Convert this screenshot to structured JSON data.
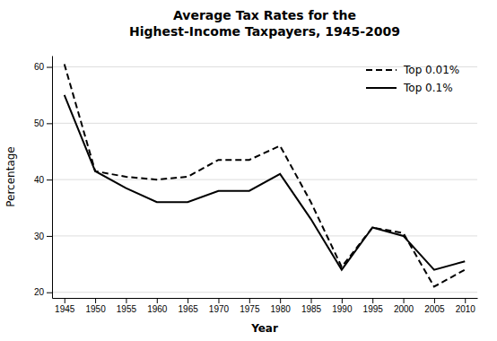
{
  "chart_data": {
    "type": "line",
    "title": "Average Tax Rates for the\nHighest-Income Taxpayers, 1945-2009",
    "xlabel": "Year",
    "ylabel": "Percentage",
    "x": [
      1945,
      1950,
      1955,
      1960,
      1965,
      1970,
      1975,
      1980,
      1985,
      1990,
      1995,
      2000,
      2005,
      2010
    ],
    "series": [
      {
        "name": "Top 0.01%",
        "color": "#000000",
        "line_style": "dashed",
        "values": [
          60.5,
          41.5,
          40.5,
          40.0,
          40.5,
          43.5,
          43.5,
          46.0,
          36.0,
          24.5,
          31.5,
          30.5,
          21.0,
          24.0
        ]
      },
      {
        "name": "Top 0.1%",
        "color": "#000000",
        "line_style": "solid",
        "values": [
          55.0,
          41.5,
          38.5,
          36.0,
          36.0,
          38.0,
          38.0,
          41.0,
          33.0,
          24.0,
          31.5,
          30.0,
          24.0,
          25.5
        ]
      }
    ],
    "xlim": [
      1943,
      2012
    ],
    "ylim": [
      19,
      62
    ],
    "xticks": [
      1945,
      1950,
      1955,
      1960,
      1965,
      1970,
      1975,
      1980,
      1985,
      1990,
      1995,
      2000,
      2005,
      2010
    ],
    "yticks": [
      20,
      30,
      40,
      50,
      60
    ],
    "grid": "y",
    "legend": "upper right"
  }
}
